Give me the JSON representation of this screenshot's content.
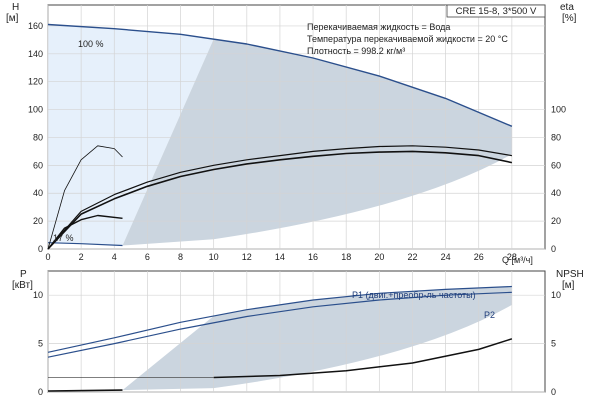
{
  "chart_data": [
    {
      "type": "line",
      "title": "CRE 15-8, 3*500 V",
      "annotations": [
        "Перекачиваемая жидкость = Вода",
        "Температура перекачиваемой жидкости = 20 °C",
        "Плотность = 998.2 кг/м³"
      ],
      "speed_labels": [
        "100 %",
        "17 %"
      ],
      "xlabel": "Q [м³/ч]",
      "xlim": [
        0,
        30
      ],
      "xticks": [
        0,
        2,
        4,
        6,
        8,
        10,
        12,
        14,
        16,
        18,
        20,
        22,
        24,
        26,
        28
      ],
      "ylabel_left": [
        "H",
        "[м]"
      ],
      "ylim_left": [
        0,
        175
      ],
      "yticks_left": [
        0,
        20,
        40,
        60,
        80,
        100,
        120,
        140,
        160
      ],
      "ylabel_right": [
        "eta",
        "[%]"
      ],
      "ylim_right": [
        0,
        175
      ],
      "yticks_right": [
        0,
        20,
        40,
        60,
        80,
        100
      ],
      "grid": true,
      "series": [
        {
          "role": "head-100",
          "x": [
            0,
            4,
            8,
            12,
            16,
            20,
            24,
            28
          ],
          "y": [
            161,
            158,
            154,
            147,
            137,
            124,
            108,
            88
          ]
        },
        {
          "role": "head-17",
          "x": [
            0,
            2,
            4.5
          ],
          "y": [
            4.5,
            3.8,
            2.5
          ]
        },
        {
          "role": "efficiency-upper",
          "x": [
            0,
            2,
            4,
            6,
            8,
            10,
            12,
            14,
            16,
            18,
            20,
            22,
            24,
            26,
            28
          ],
          "y": [
            0,
            27,
            39,
            48,
            55,
            60,
            64,
            67,
            70,
            72,
            73.5,
            74,
            73,
            71,
            67
          ]
        },
        {
          "role": "efficiency-lower",
          "x": [
            0,
            2,
            4,
            6,
            8,
            10,
            12,
            14,
            16,
            18,
            20,
            22,
            24,
            26,
            28
          ],
          "y": [
            0,
            25,
            36,
            45,
            52,
            57,
            61,
            64,
            66.5,
            68.5,
            69.5,
            70,
            69,
            67,
            62
          ]
        },
        {
          "role": "efficiency-reduced-speed",
          "x": [
            0,
            1,
            2,
            3,
            4.5
          ],
          "y": [
            0,
            15,
            21,
            24,
            22
          ]
        },
        {
          "role": "curve-thin",
          "x": [
            0,
            1,
            2,
            3,
            4,
            4.5
          ],
          "y": [
            0,
            42,
            64,
            74,
            72,
            66
          ]
        }
      ]
    },
    {
      "type": "line",
      "xlim": [
        0,
        30
      ],
      "ylabel_left": [
        "P",
        "[кВт]"
      ],
      "ylim_left": [
        0,
        12.5
      ],
      "yticks_left": [
        0,
        5,
        10
      ],
      "ylabel_right": [
        "NPSH",
        "[м]"
      ],
      "ylim_right": [
        0,
        12.5
      ],
      "yticks_right": [
        0,
        5,
        10
      ],
      "grid": true,
      "series": [
        {
          "name": "P1 (двиг.+преобр-ль частоты)",
          "x": [
            0,
            4,
            8,
            12,
            16,
            20,
            24,
            28
          ],
          "y": [
            4.1,
            5.6,
            7.2,
            8.5,
            9.5,
            10.2,
            10.6,
            10.9
          ]
        },
        {
          "name": "P2",
          "x": [
            0,
            4,
            8,
            12,
            16,
            20,
            24,
            28
          ],
          "y": [
            3.6,
            5.0,
            6.5,
            7.8,
            8.8,
            9.5,
            10.0,
            10.3
          ]
        },
        {
          "role": "npsh",
          "x": [
            10,
            14,
            18,
            22,
            26,
            28
          ],
          "y": [
            1.5,
            1.7,
            2.2,
            3.0,
            4.4,
            5.5
          ]
        },
        {
          "role": "power-reduced-speed",
          "x": [
            0,
            4.5
          ],
          "y": [
            0.1,
            0.2
          ]
        }
      ]
    }
  ]
}
